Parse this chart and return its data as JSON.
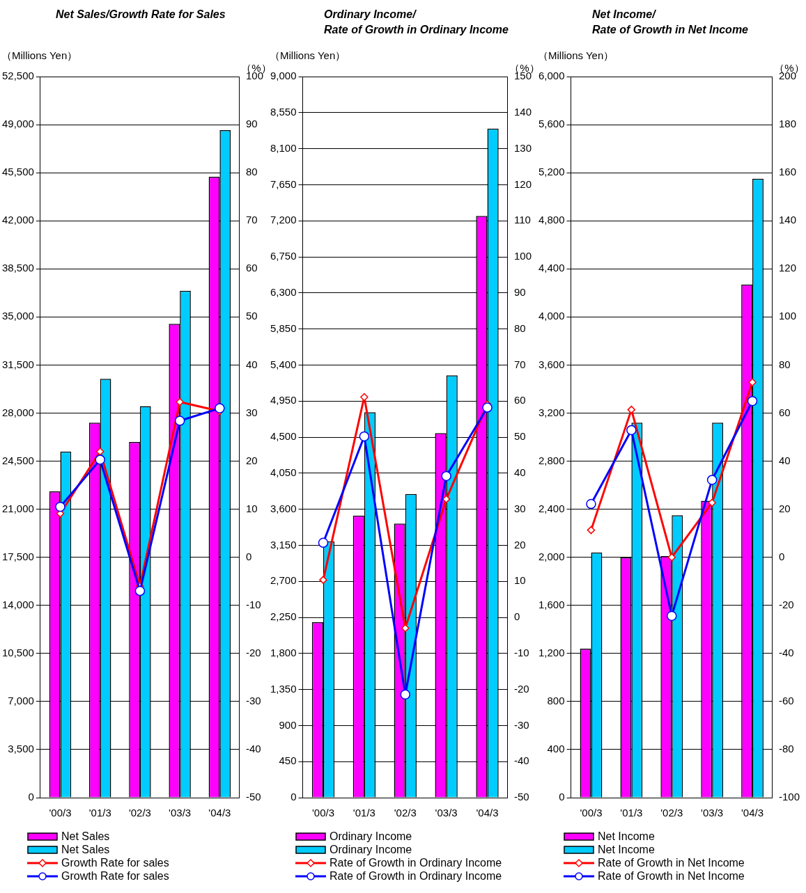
{
  "chart_data": [
    {
      "type": "bar",
      "title": "Net Sales/Growth Rate for Sales",
      "ylabel": "（Millions Yen）",
      "y2label": "（%）",
      "categories": [
        "'00/3",
        "'01/3",
        "'02/3",
        "'03/3",
        "'04/3"
      ],
      "ylim": [
        0,
        52500
      ],
      "yticks": [
        0,
        {
          "value": 3500,
          "label": "3,500"
        },
        {
          "value": 7000,
          "label": "7,000"
        },
        {
          "value": 10500,
          "label": "10,500"
        },
        {
          "value": 14000,
          "label": "14,000"
        },
        {
          "value": 17500,
          "label": "17,500"
        },
        {
          "value": 21000,
          "label": "21,000"
        },
        {
          "value": 24500,
          "label": "24,500"
        },
        {
          "value": 28000,
          "label": "28,000"
        },
        {
          "value": 31500,
          "label": "31,500"
        },
        {
          "value": 35000,
          "label": "35,000"
        },
        {
          "value": 38500,
          "label": "38,500"
        },
        {
          "value": 42000,
          "label": "42,000"
        },
        {
          "value": 45500,
          "label": "45,500"
        },
        {
          "value": 49000,
          "label": "49,000"
        },
        {
          "value": 52500,
          "label": "52,500"
        }
      ],
      "y2lim": [
        -50,
        100
      ],
      "y2ticks": [
        -50,
        -40,
        -30,
        -20,
        -10,
        0,
        10,
        20,
        30,
        40,
        50,
        60,
        70,
        80,
        90,
        100
      ],
      "grid": "y",
      "legend": "bottom",
      "series": [
        {
          "name": "Net Sales",
          "color": "#ff00ff",
          "values": [
            22300,
            27300,
            25900,
            34500,
            45200
          ]
        },
        {
          "name": "Net Sales",
          "color": "#00ccff",
          "values": [
            25200,
            30500,
            28500,
            36900,
            48600
          ]
        },
        {
          "name": "Growth Rate for sales",
          "type": "line",
          "axis": "y2",
          "marker": "diamond",
          "color": "#ff0000",
          "values": [
            9.1,
            22.0,
            -6.0,
            32.3,
            30.4
          ]
        },
        {
          "name": "Growth Rate for sales",
          "type": "line",
          "axis": "y2",
          "marker": "circle",
          "color": "#0000ff",
          "values": [
            10.5,
            20.3,
            -7.0,
            28.4,
            31.0
          ]
        }
      ]
    },
    {
      "type": "bar",
      "title": "Ordinary Income/\nRate of Growth in Ordinary Income",
      "ylabel": "（Millions Yen）",
      "y2label": "（%）",
      "categories": [
        "'00/3",
        "'01/3",
        "'02/3",
        "'03/3",
        "'04/3"
      ],
      "ylim": [
        0,
        9000
      ],
      "yticks": [
        0,
        450,
        900,
        {
          "value": 1350,
          "label": "1,350"
        },
        {
          "value": 1800,
          "label": "1,800"
        },
        {
          "value": 2250,
          "label": "2,250"
        },
        {
          "value": 2700,
          "label": "2,700"
        },
        {
          "value": 3150,
          "label": "3,150"
        },
        {
          "value": 3600,
          "label": "3,600"
        },
        {
          "value": 4050,
          "label": "4,050"
        },
        {
          "value": 4500,
          "label": "4,500"
        },
        {
          "value": 4950,
          "label": "4,950"
        },
        {
          "value": 5400,
          "label": "5,400"
        },
        {
          "value": 5850,
          "label": "5,850"
        },
        {
          "value": 6300,
          "label": "6,300"
        },
        {
          "value": 6750,
          "label": "6,750"
        },
        {
          "value": 7200,
          "label": "7,200"
        },
        {
          "value": 7650,
          "label": "7,650"
        },
        {
          "value": 8100,
          "label": "8,100"
        },
        {
          "value": 8550,
          "label": "8,550"
        },
        {
          "value": 9000,
          "label": "9,000"
        }
      ],
      "y2lim": [
        -50,
        150
      ],
      "y2ticks": [
        -50,
        -40,
        -30,
        -20,
        -10,
        0,
        10,
        20,
        30,
        40,
        50,
        60,
        70,
        80,
        90,
        100,
        110,
        120,
        130,
        140,
        150
      ],
      "grid": "y",
      "legend": "bottom",
      "series": [
        {
          "name": "Ordinary Income",
          "color": "#ff00ff",
          "values": [
            2190,
            3520,
            3420,
            4550,
            7260
          ]
        },
        {
          "name": "Ordinary Income",
          "color": "#00ccff",
          "values": [
            3200,
            4810,
            3790,
            5270,
            8350
          ]
        },
        {
          "name": "Rate of Growth in Ordinary Income",
          "type": "line",
          "axis": "y2",
          "marker": "diamond",
          "color": "#ff0000",
          "values": [
            10.4,
            61.1,
            -3.0,
            32.8,
            59.1
          ]
        },
        {
          "name": "Rate of Growth in Ordinary Income",
          "type": "line",
          "axis": "y2",
          "marker": "circle",
          "color": "#0000ff",
          "values": [
            20.7,
            50.2,
            -21.4,
            39.2,
            58.2
          ]
        }
      ]
    },
    {
      "type": "bar",
      "title": "Net Income/\nRate of Growth in Net Income",
      "ylabel": "（Millions Yen）",
      "y2label": "（%）",
      "categories": [
        "'00/3",
        "'01/3",
        "'02/3",
        "'03/3",
        "'04/3"
      ],
      "ylim": [
        0,
        6000
      ],
      "yticks": [
        0,
        400,
        800,
        {
          "value": 1200,
          "label": "1,200"
        },
        {
          "value": 1600,
          "label": "1,600"
        },
        {
          "value": 2000,
          "label": "2,000"
        },
        {
          "value": 2400,
          "label": "2,400"
        },
        {
          "value": 2800,
          "label": "2,800"
        },
        {
          "value": 3200,
          "label": "3,200"
        },
        {
          "value": 3600,
          "label": "3,600"
        },
        {
          "value": 4000,
          "label": "4,000"
        },
        {
          "value": 4400,
          "label": "4,400"
        },
        {
          "value": 4800,
          "label": "4,800"
        },
        {
          "value": 5200,
          "label": "5,200"
        },
        {
          "value": 5600,
          "label": "5,600"
        },
        {
          "value": 6000,
          "label": "6,000"
        }
      ],
      "y2lim": [
        -100,
        200
      ],
      "y2ticks": [
        -100,
        -80,
        -60,
        -40,
        -20,
        0,
        20,
        40,
        60,
        80,
        100,
        120,
        140,
        160,
        180,
        200
      ],
      "grid": "y",
      "legend": "bottom",
      "series": [
        {
          "name": "Net Income",
          "color": "#ff00ff",
          "values": [
            1240,
            2000,
            2010,
            2470,
            4270
          ]
        },
        {
          "name": "Net Income",
          "color": "#00ccff",
          "values": [
            2040,
            3120,
            2350,
            3120,
            5150
          ]
        },
        {
          "name": "Rate of Growth in Net Income",
          "type": "line",
          "axis": "y2",
          "marker": "diamond",
          "color": "#ff0000",
          "values": [
            11.3,
            61.4,
            0,
            22.7,
            72.8
          ]
        },
        {
          "name": "Rate of Growth in Net Income",
          "type": "line",
          "axis": "y2",
          "marker": "circle",
          "color": "#0000ff",
          "values": [
            22.2,
            52.9,
            -24.4,
            32.2,
            65.0
          ]
        }
      ]
    }
  ]
}
